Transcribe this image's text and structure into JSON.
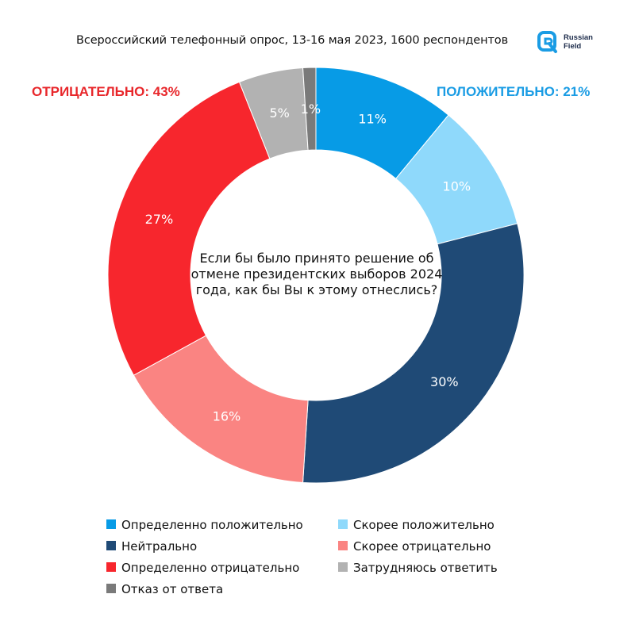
{
  "header": {
    "title": "Всероссийский телефонный опрос, 13-16 мая 2023, 1600 респондентов"
  },
  "logo": {
    "line1": "Russian",
    "line2": "Field",
    "color": "#1a9ce4"
  },
  "groups": {
    "negative": "ОТРИЦАТЕЛЬНО: 43%",
    "positive": "ПОЛОЖИТЕЛЬНО: 21%"
  },
  "chart_data": {
    "type": "pie",
    "donut": true,
    "center_text": "Если бы было принято решение об отмене президентских выборов 2024 года, как бы Вы к этому отнеслись?",
    "slices": [
      {
        "label": "Определенно положительно",
        "value": 11,
        "display": "11%",
        "color": "#079be6"
      },
      {
        "label": "Скорее положительно",
        "value": 10,
        "display": "10%",
        "color": "#8fd9fb"
      },
      {
        "label": "Нейтрально",
        "value": 30,
        "display": "30%",
        "color": "#1f4a76"
      },
      {
        "label": "Скорее отрицательно",
        "value": 16,
        "display": "16%",
        "color": "#fa8482"
      },
      {
        "label": "Определенно отрицательно",
        "value": 27,
        "display": "27%",
        "color": "#f7262d"
      },
      {
        "label": "Затрудняюсь ответить",
        "value": 5,
        "display": "5%",
        "color": "#b2b2b2"
      },
      {
        "label": "Отказ от ответа",
        "value": 1,
        "display": "1%",
        "color": "#7a7a7a"
      }
    ],
    "legend_placement": "bottom"
  }
}
